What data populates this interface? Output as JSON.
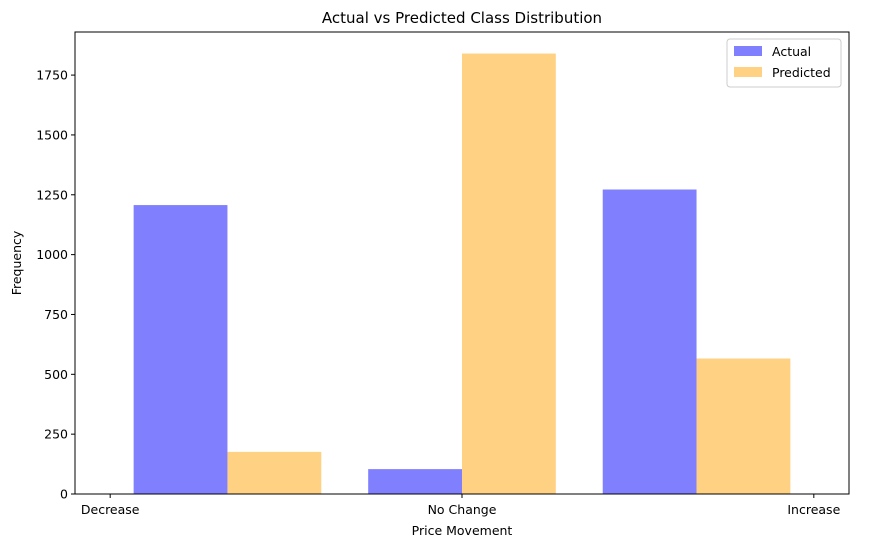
{
  "chart_data": {
    "type": "bar",
    "title": "Actual vs Predicted Class Distribution",
    "xlabel": "Price Movement",
    "ylabel": "Frequency",
    "categories": [
      "Decrease",
      "No Change",
      "Increase"
    ],
    "x_ticks": [
      {
        "value": -1,
        "label": "Decrease"
      },
      {
        "value": 0,
        "label": "No Change"
      },
      {
        "value": 1,
        "label": "Increase"
      }
    ],
    "y_ticks": [
      0,
      250,
      500,
      750,
      1000,
      1250,
      1500,
      1750
    ],
    "ylim": [
      0,
      1930
    ],
    "xlim": [
      -1.1,
      1.1
    ],
    "grid": false,
    "legend_position": "top-right",
    "series": [
      {
        "name": "Actual",
        "color": "#4a4aff",
        "values": [
          1207,
          104,
          1272
        ]
      },
      {
        "name": "Predicted",
        "color": "#ffbe4d",
        "values": [
          176,
          1840,
          566
        ]
      }
    ]
  }
}
